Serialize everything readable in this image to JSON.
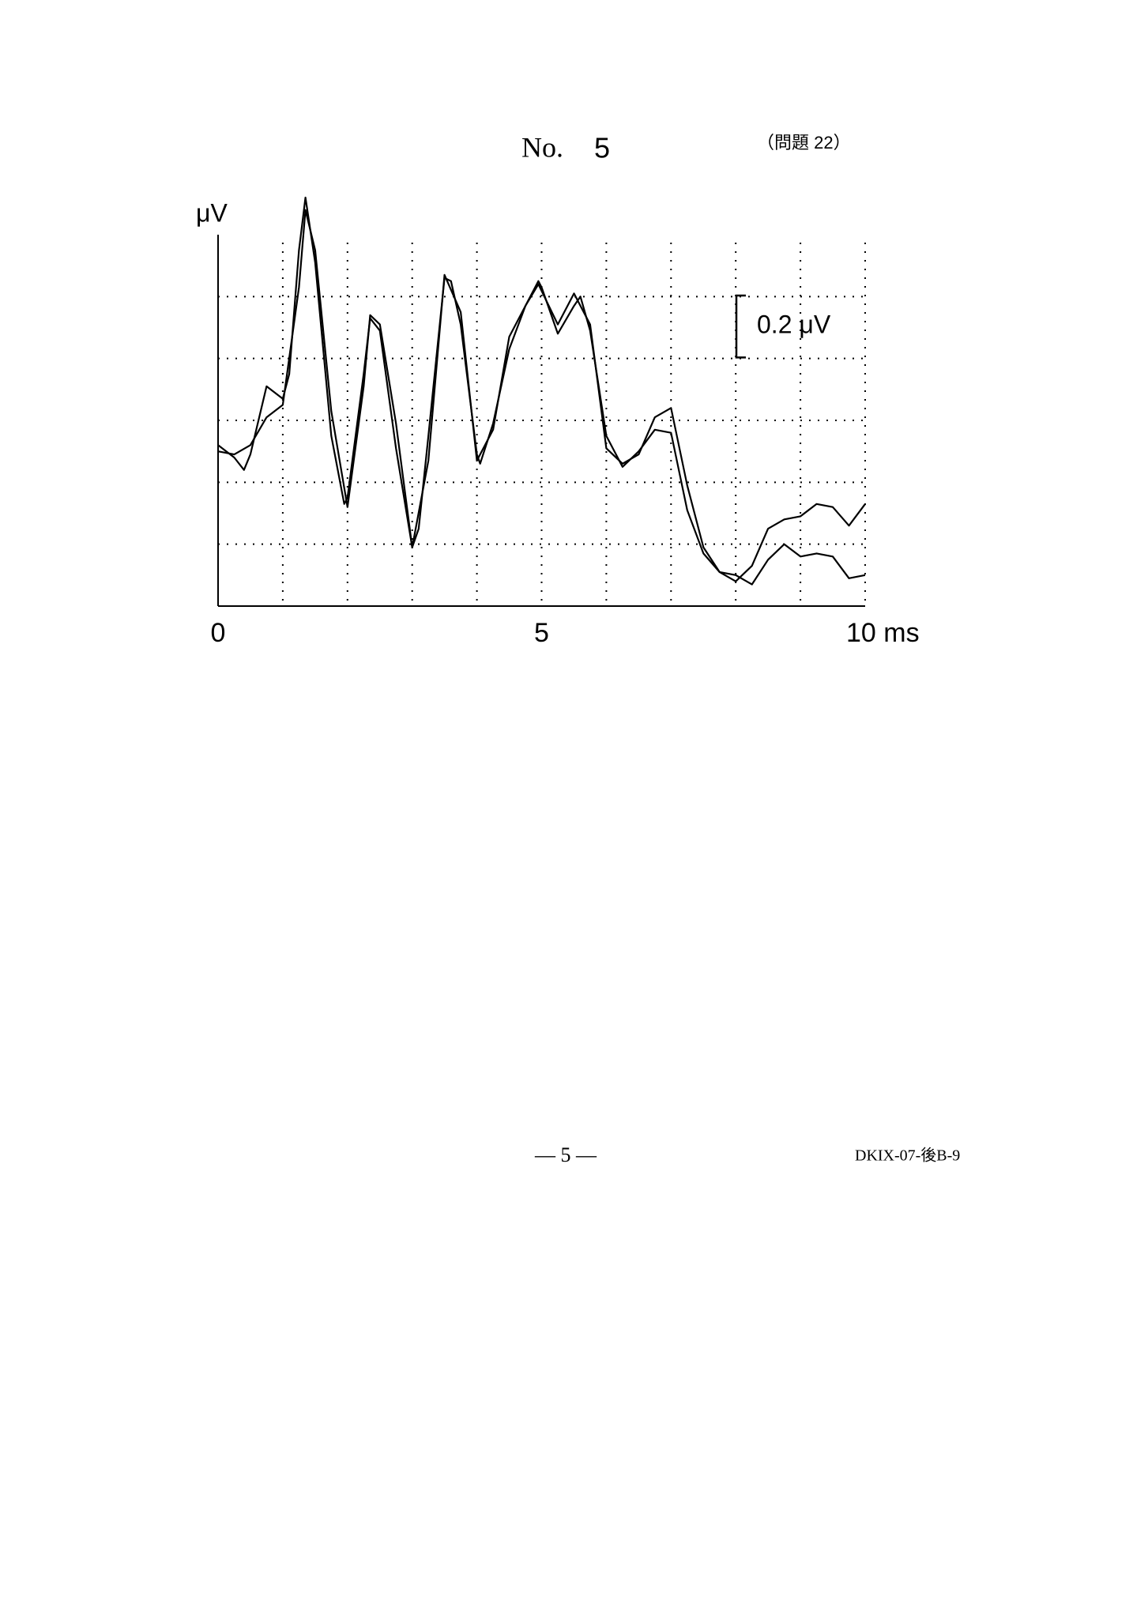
{
  "header": {
    "no_label": "No.",
    "no": "5",
    "question": "（問題 22）"
  },
  "chart_data": {
    "type": "line",
    "y_label": "μV",
    "xlim": [
      0,
      10
    ],
    "ylim": [
      0,
      1.2
    ],
    "xticks": [
      0,
      5,
      {
        "value": 10,
        "label": "10 ms"
      }
    ],
    "xgrid": [
      1,
      2,
      3,
      4,
      5,
      6,
      7,
      8,
      9,
      10
    ],
    "ygrid": [
      0.2,
      0.4,
      0.6,
      0.8,
      1.0
    ],
    "scale_bar": {
      "label": "0.2 μV",
      "value": 0.2
    },
    "series": [
      {
        "color": "#000000",
        "x": [
          0,
          0.25,
          0.4,
          0.5,
          0.75,
          1,
          1.1,
          1.25,
          1.35,
          1.5,
          1.75,
          1.95,
          2,
          2.25,
          2.35,
          2.5,
          2.75,
          3,
          3.1,
          3.25,
          3.5,
          3.6,
          3.75,
          4,
          4.05,
          4.25,
          4.5,
          4.75,
          4.95,
          5,
          5.25,
          5.5,
          5.6,
          5.75,
          6,
          6.25,
          6.5,
          6.75,
          7,
          7.25,
          7.5,
          7.75,
          8,
          8.25,
          8.5,
          8.75,
          9,
          9.25,
          9.5,
          9.75,
          10
        ],
        "values": [
          0.52,
          0.48,
          0.44,
          0.49,
          0.71,
          0.67,
          0.75,
          1.15,
          1.32,
          1.11,
          0.55,
          0.33,
          0.35,
          0.75,
          0.93,
          0.89,
          0.51,
          0.19,
          0.25,
          0.55,
          1.06,
          1.05,
          0.91,
          0.49,
          0.46,
          0.59,
          0.83,
          0.97,
          1.05,
          1.03,
          0.88,
          0.97,
          1.0,
          0.89,
          0.55,
          0.45,
          0.5,
          0.57,
          0.56,
          0.31,
          0.17,
          0.11,
          0.1,
          0.07,
          0.15,
          0.2,
          0.16,
          0.17,
          0.16,
          0.09,
          0.1
        ]
      },
      {
        "color": "#000000",
        "x": [
          0,
          0.25,
          0.5,
          0.75,
          1,
          1.25,
          1.35,
          1.5,
          1.75,
          2,
          2.25,
          2.35,
          2.5,
          2.75,
          3,
          3.25,
          3.5,
          3.75,
          4,
          4.25,
          4.5,
          4.75,
          4.95,
          5.25,
          5.5,
          5.75,
          6,
          6.25,
          6.5,
          6.75,
          7,
          7.25,
          7.5,
          7.75,
          8,
          8.25,
          8.5,
          8.75,
          9,
          9.25,
          9.5,
          9.75,
          10
        ],
        "values": [
          0.5,
          0.49,
          0.52,
          0.61,
          0.65,
          1.03,
          1.28,
          1.15,
          0.63,
          0.32,
          0.71,
          0.94,
          0.91,
          0.59,
          0.19,
          0.47,
          1.07,
          0.95,
          0.47,
          0.57,
          0.87,
          0.97,
          1.04,
          0.91,
          1.01,
          0.91,
          0.51,
          0.46,
          0.49,
          0.61,
          0.64,
          0.39,
          0.19,
          0.11,
          0.08,
          0.13,
          0.25,
          0.28,
          0.29,
          0.33,
          0.32,
          0.26,
          0.33
        ]
      }
    ]
  },
  "footer": {
    "page": "— 5 —",
    "code": "DKIX-07-後B-9"
  }
}
